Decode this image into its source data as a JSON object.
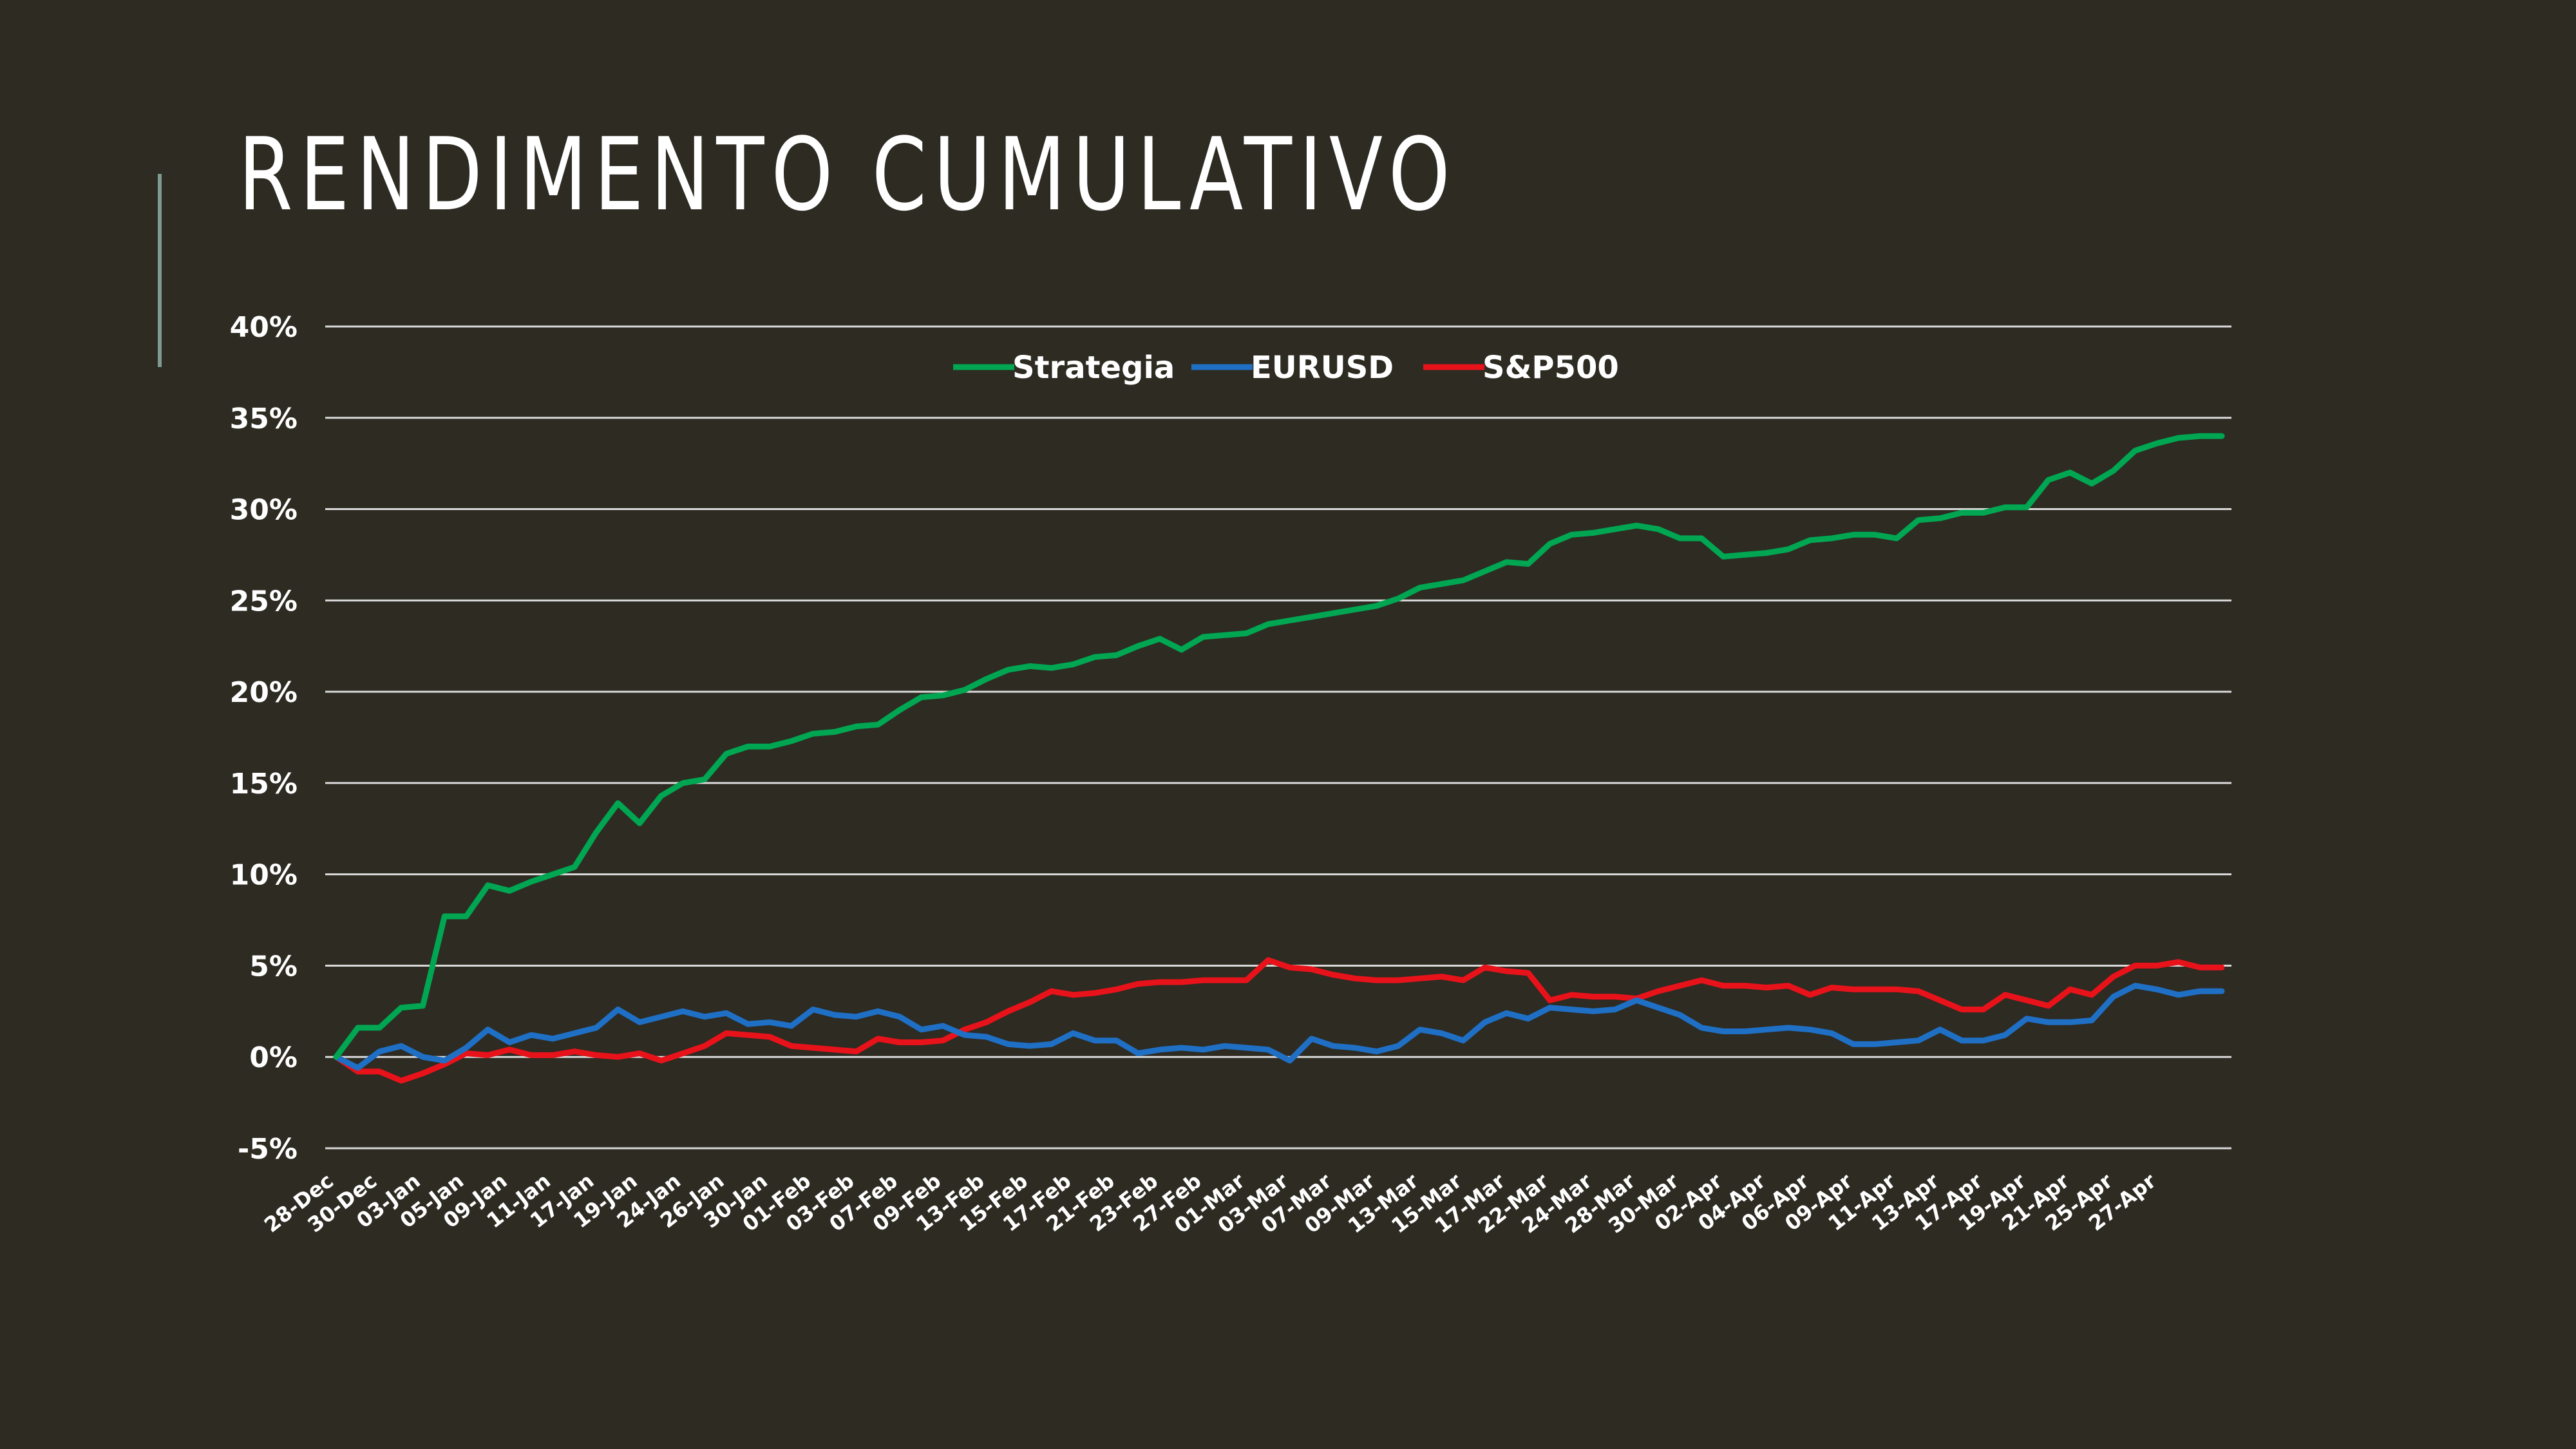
{
  "slide": {
    "title": "RENDIMENTO CUMULATIVO"
  },
  "colors": {
    "background": "#2d2b22",
    "grid": "#d9d9d9",
    "text": "#ffffff",
    "accent_bar": "#7f9a93"
  },
  "chart_data": {
    "type": "line",
    "ylim": [
      -0.05,
      0.4
    ],
    "yticks": [
      -0.05,
      0,
      0.05,
      0.1,
      0.15,
      0.2,
      0.25,
      0.3,
      0.35,
      0.4
    ],
    "ytick_labels": [
      "-5%",
      "0%",
      "5%",
      "10%",
      "15%",
      "20%",
      "25%",
      "30%",
      "35%",
      "40%"
    ],
    "grid": true,
    "legend_position": "top-center",
    "x_tick_labels": [
      "28-Dec",
      "30-Dec",
      "03-Jan",
      "05-Jan",
      "09-Jan",
      "11-Jan",
      "17-Jan",
      "19-Jan",
      "24-Jan",
      "26-Jan",
      "30-Jan",
      "01-Feb",
      "03-Feb",
      "07-Feb",
      "09-Feb",
      "13-Feb",
      "15-Feb",
      "17-Feb",
      "21-Feb",
      "23-Feb",
      "27-Feb",
      "01-Mar",
      "03-Mar",
      "07-Mar",
      "09-Mar",
      "13-Mar",
      "15-Mar",
      "17-Mar",
      "22-Mar",
      "24-Mar",
      "28-Mar",
      "30-Mar",
      "02-Apr",
      "04-Apr",
      "06-Apr",
      "09-Apr",
      "11-Apr",
      "13-Apr",
      "17-Apr",
      "19-Apr",
      "21-Apr",
      "25-Apr",
      "27-Apr"
    ],
    "n_points": 88,
    "series": [
      {
        "name": "Strategia",
        "color": "#00a651",
        "values": [
          0,
          0.016,
          0.016,
          0.027,
          0.028,
          0.077,
          0.077,
          0.094,
          0.091,
          0.096,
          0.1,
          0.104,
          0.123,
          0.139,
          0.128,
          0.143,
          0.15,
          0.152,
          0.166,
          0.17,
          0.17,
          0.173,
          0.177,
          0.178,
          0.181,
          0.182,
          0.19,
          0.197,
          0.198,
          0.201,
          0.207,
          0.212,
          0.214,
          0.213,
          0.215,
          0.219,
          0.22,
          0.225,
          0.229,
          0.223,
          0.23,
          0.231,
          0.232,
          0.237,
          0.239,
          0.241,
          0.243,
          0.245,
          0.247,
          0.251,
          0.257,
          0.259,
          0.261,
          0.266,
          0.271,
          0.27,
          0.281,
          0.286,
          0.287,
          0.289,
          0.291,
          0.289,
          0.284,
          0.284,
          0.274,
          0.275,
          0.276,
          0.278,
          0.283,
          0.284,
          0.286,
          0.286,
          0.284,
          0.294,
          0.295,
          0.298,
          0.298,
          0.301,
          0.301,
          0.316,
          0.32,
          0.314,
          0.321,
          0.332,
          0.336,
          0.339,
          0.34,
          0.34
        ]
      },
      {
        "name": "EURUSD",
        "color": "#1f6fc5",
        "values": [
          0,
          -0.006,
          0.003,
          0.006,
          0,
          -0.002,
          0.005,
          0.015,
          0.008,
          0.012,
          0.01,
          0.013,
          0.016,
          0.026,
          0.019,
          0.022,
          0.025,
          0.022,
          0.024,
          0.018,
          0.019,
          0.017,
          0.026,
          0.023,
          0.022,
          0.025,
          0.022,
          0.015,
          0.017,
          0.012,
          0.011,
          0.007,
          0.006,
          0.007,
          0.013,
          0.009,
          0.009,
          0.002,
          0.004,
          0.005,
          0.004,
          0.006,
          0.005,
          0.004,
          -0.002,
          0.01,
          0.006,
          0.005,
          0.003,
          0.006,
          0.015,
          0.013,
          0.009,
          0.019,
          0.024,
          0.021,
          0.027,
          0.026,
          0.025,
          0.026,
          0.031,
          0.027,
          0.023,
          0.016,
          0.014,
          0.014,
          0.015,
          0.016,
          0.015,
          0.013,
          0.007,
          0.007,
          0.008,
          0.009,
          0.015,
          0.009,
          0.009,
          0.012,
          0.021,
          0.019,
          0.019,
          0.02,
          0.033,
          0.039,
          0.037,
          0.034,
          0.036,
          0.036
        ]
      },
      {
        "name": "S&P500",
        "color": "#e8131a",
        "values": [
          0,
          -0.008,
          -0.008,
          -0.013,
          -0.009,
          -0.004,
          0.002,
          0.001,
          0.004,
          0.001,
          0.001,
          0.003,
          0.001,
          0,
          0.002,
          -0.002,
          0.002,
          0.006,
          0.013,
          0.012,
          0.011,
          0.006,
          0.005,
          0.004,
          0.003,
          0.01,
          0.008,
          0.008,
          0.009,
          0.015,
          0.019,
          0.025,
          0.03,
          0.036,
          0.034,
          0.035,
          0.037,
          0.04,
          0.041,
          0.041,
          0.042,
          0.042,
          0.042,
          0.053,
          0.049,
          0.048,
          0.045,
          0.043,
          0.042,
          0.042,
          0.043,
          0.044,
          0.042,
          0.049,
          0.047,
          0.046,
          0.031,
          0.034,
          0.033,
          0.033,
          0.032,
          0.036,
          0.039,
          0.042,
          0.039,
          0.039,
          0.038,
          0.039,
          0.034,
          0.038,
          0.037,
          0.037,
          0.037,
          0.036,
          0.031,
          0.026,
          0.026,
          0.034,
          0.031,
          0.028,
          0.037,
          0.034,
          0.044,
          0.05,
          0.05,
          0.052,
          0.049,
          0.049
        ]
      }
    ]
  }
}
